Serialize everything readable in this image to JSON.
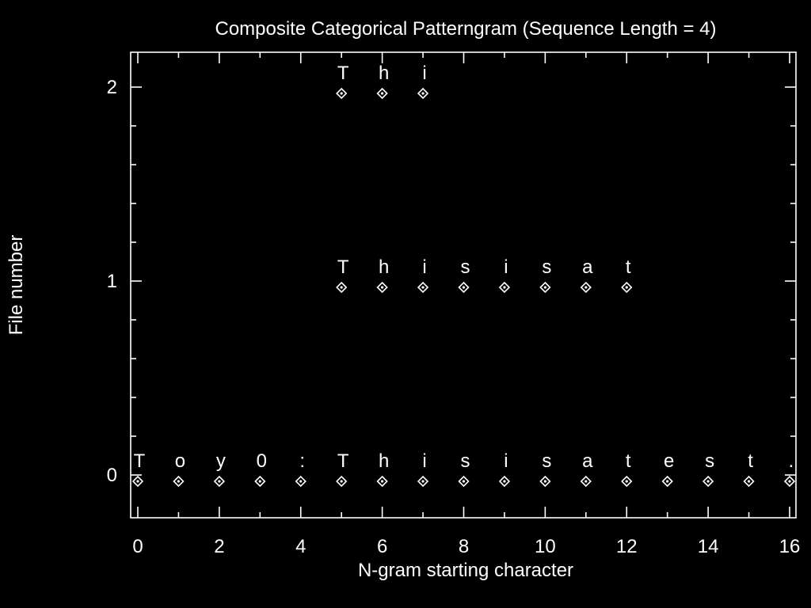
{
  "chart_data": {
    "type": "scatter",
    "title": "Composite Categorical Patterngram (Sequence Length = 4)",
    "xlabel": "N-gram starting character",
    "ylabel": "File number",
    "xlim": [
      0,
      16
    ],
    "ylim": [
      0,
      2
    ],
    "x_ticks": [
      0,
      2,
      4,
      6,
      8,
      10,
      12,
      14,
      16
    ],
    "y_ticks": [
      0,
      1,
      2
    ],
    "grid": false,
    "series": [
      {
        "y": 0,
        "x": [
          0,
          1,
          2,
          3,
          4,
          5,
          6,
          7,
          8,
          9,
          10,
          11,
          12,
          13,
          14,
          15,
          16
        ],
        "labels": [
          "T",
          "o",
          "y",
          "0",
          ":",
          "T",
          "h",
          "i",
          "s",
          "i",
          "s",
          "a",
          "t",
          "e",
          "s",
          "t",
          "."
        ]
      },
      {
        "y": 1,
        "x": [
          5,
          6,
          7,
          8,
          9,
          10,
          11,
          12
        ],
        "labels": [
          "T",
          "h",
          "i",
          "s",
          "i",
          "s",
          "a",
          "t"
        ]
      },
      {
        "y": 2,
        "x": [
          5,
          6,
          7
        ],
        "labels": [
          "T",
          "h",
          "i"
        ]
      }
    ]
  }
}
